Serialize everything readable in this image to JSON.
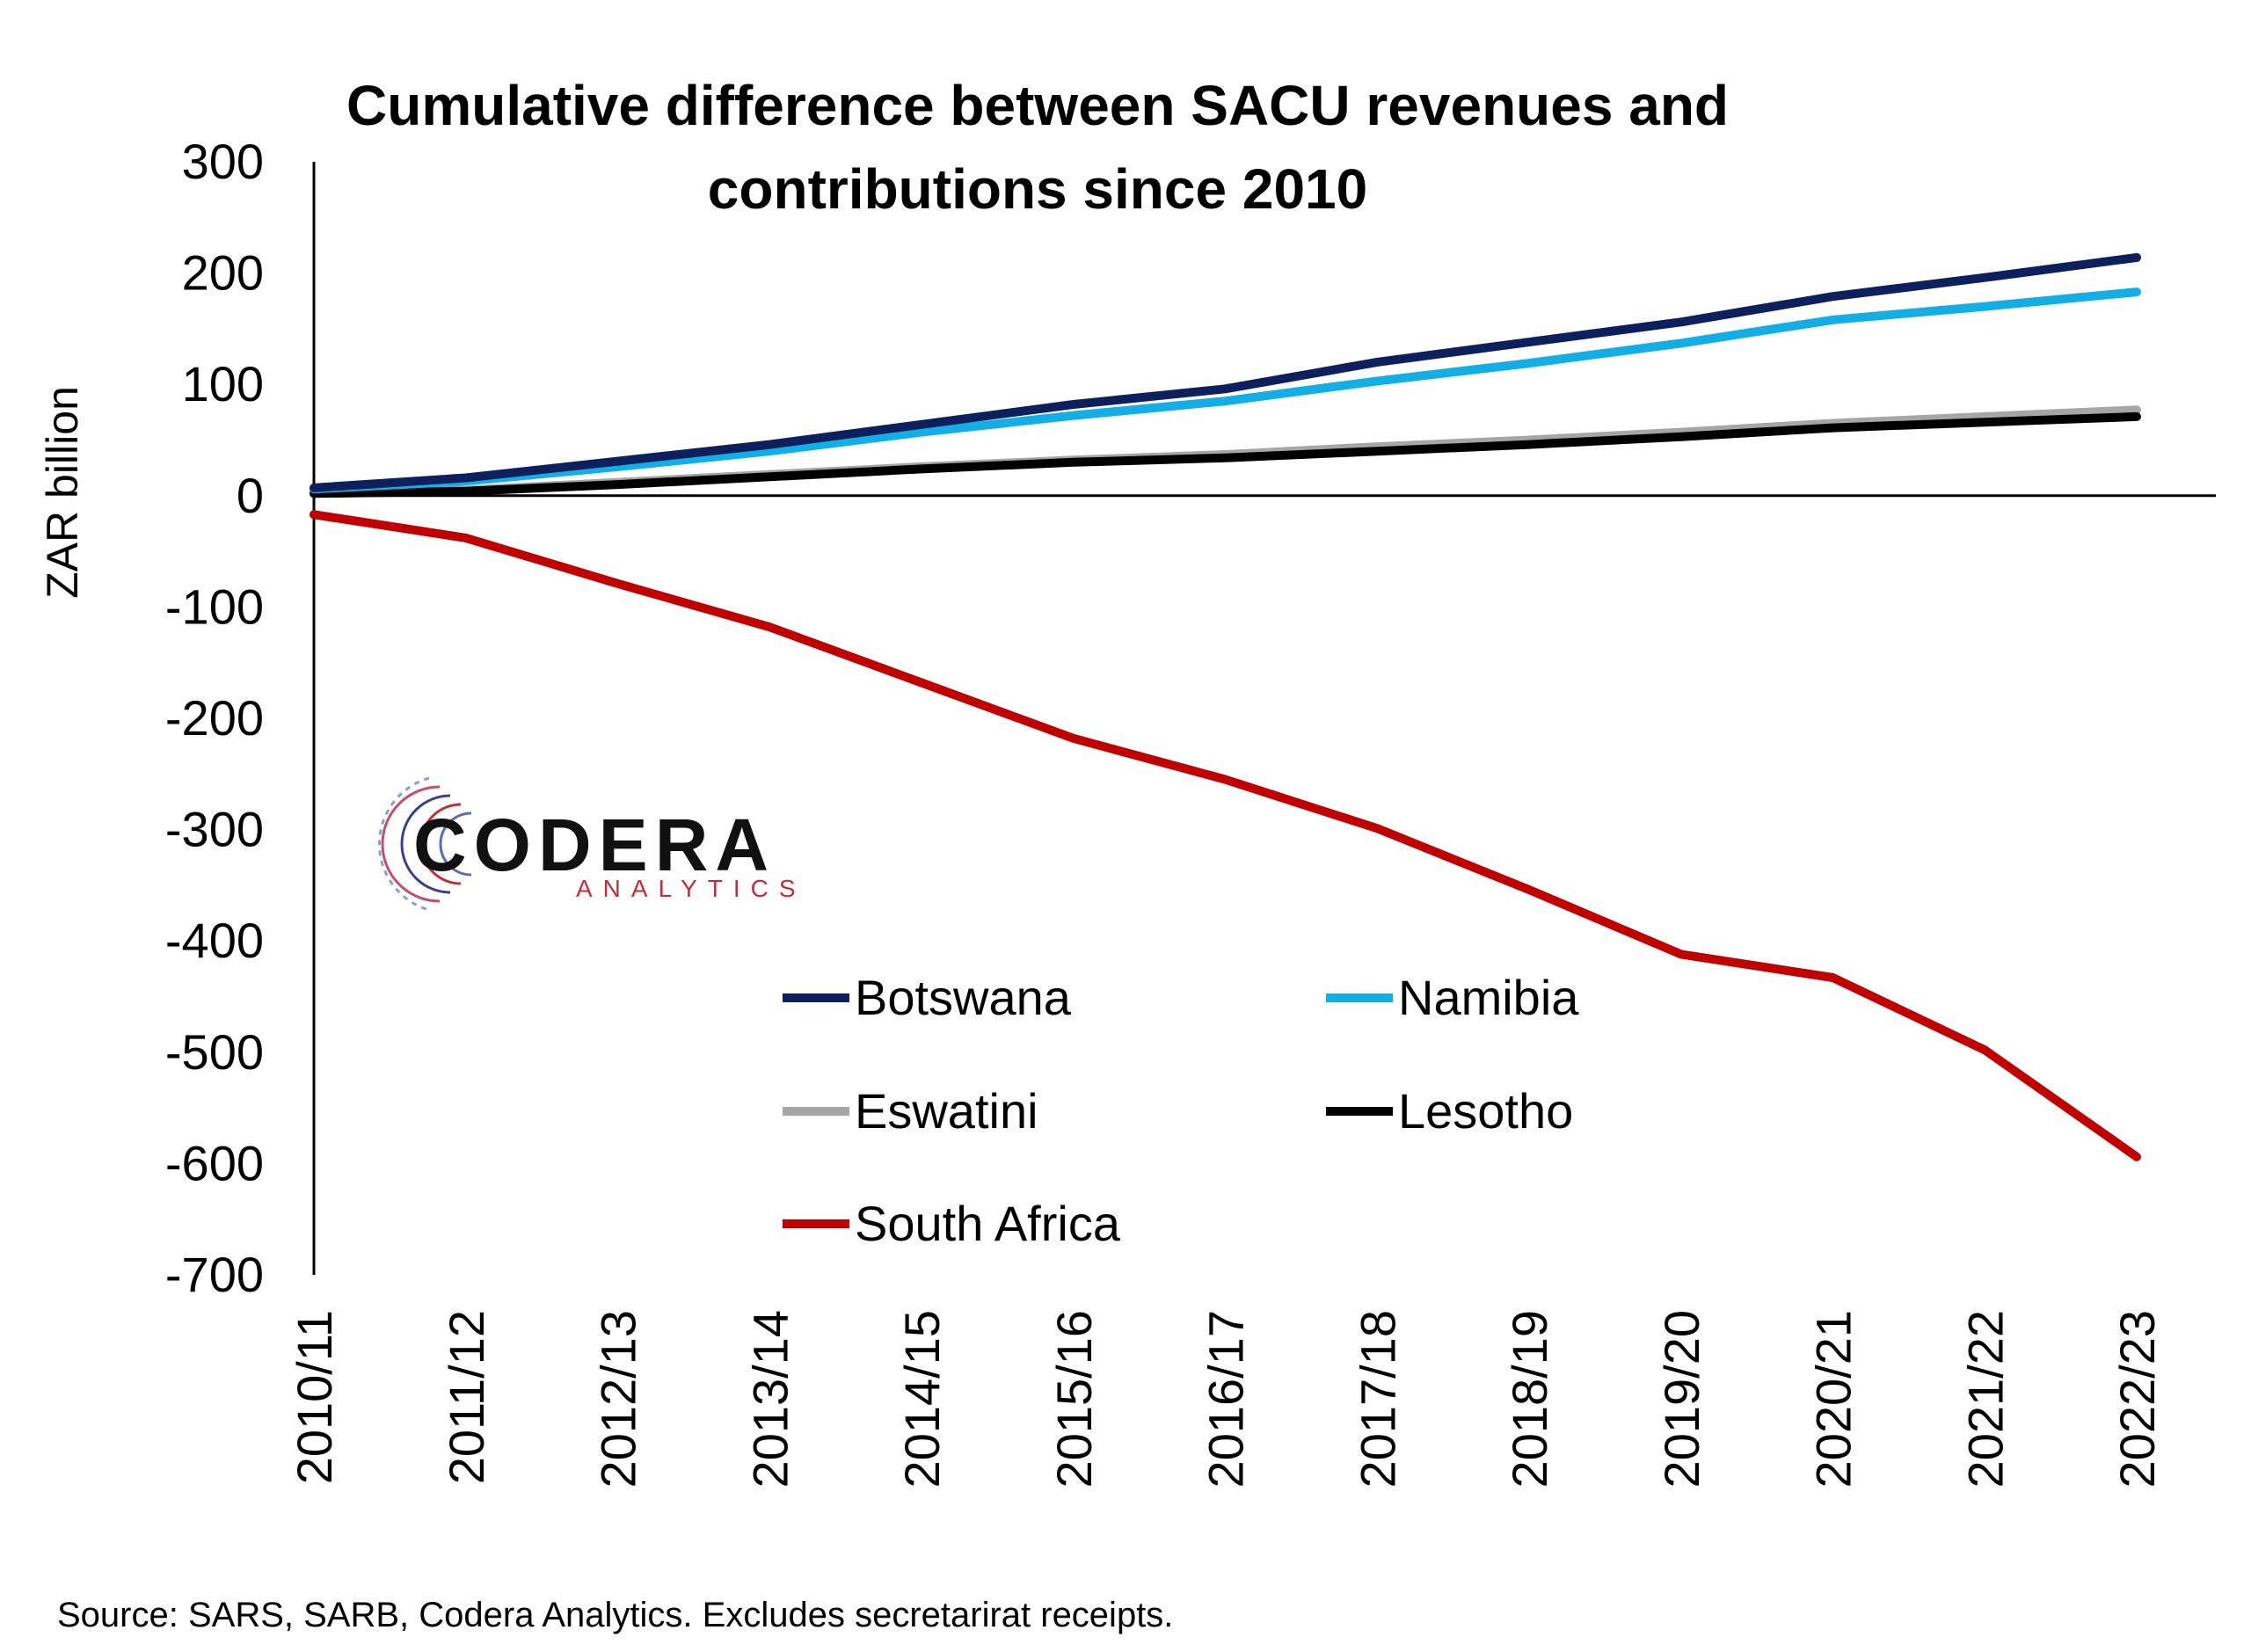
{
  "colors": {
    "botswana": "#0d1f5c",
    "namibia": "#13aee6",
    "eswatini": "#a6a6a6",
    "lesotho": "#000000",
    "south_africa": "#c00000",
    "axis": "#000000"
  },
  "logo": {
    "main": "CODERA",
    "sub": "ANALYTICS"
  },
  "source": "Source: SARS, SARB, Codera Analytics. Excludes secretarirat receipts.",
  "chart_data": {
    "type": "line",
    "title_lines": [
      "Cumulative difference between SACU revenues and",
      "contributions since 2010"
    ],
    "ylabel": "ZAR billion",
    "xlabel": "",
    "ylim": [
      -700,
      300
    ],
    "yticks": [
      300,
      200,
      100,
      0,
      -100,
      -200,
      -300,
      -400,
      -500,
      -600,
      -700
    ],
    "ytick_labels": [
      "300",
      "200",
      "100",
      "0",
      "-100",
      "-200",
      "-300",
      "-400",
      "-500",
      "-600",
      "-700"
    ],
    "categories": [
      "2010/11",
      "2011/12",
      "2012/13",
      "2013/14",
      "2014/15",
      "2015/16",
      "2016/17",
      "2017/18",
      "2018/19",
      "2019/20",
      "2020/21",
      "2021/22",
      "2022/23"
    ],
    "grid": false,
    "legend_position": "bottom-center",
    "series": [
      {
        "name": "Botswana",
        "color_key": "botswana",
        "values": [
          7,
          16,
          31,
          46,
          64,
          82,
          96,
          120,
          138,
          156,
          179,
          196,
          214
        ]
      },
      {
        "name": "Namibia",
        "color_key": "namibia",
        "values": [
          6,
          13,
          26,
          40,
          57,
          72,
          85,
          103,
          119,
          137,
          158,
          170,
          183
        ]
      },
      {
        "name": "Eswatini",
        "color_key": "eswatini",
        "values": [
          3,
          5,
          12,
          19,
          26,
          32,
          37,
          44,
          50,
          57,
          65,
          71,
          77
        ]
      },
      {
        "name": "Lesotho",
        "color_key": "lesotho",
        "values": [
          2,
          4,
          10,
          17,
          24,
          30,
          34,
          40,
          46,
          53,
          61,
          66,
          71
        ]
      },
      {
        "name": "South Africa",
        "color_key": "south_africa",
        "values": [
          -17,
          -38,
          -79,
          -118,
          -168,
          -218,
          -255,
          -299,
          -354,
          -412,
          -433,
          -498,
          -594
        ]
      }
    ]
  }
}
